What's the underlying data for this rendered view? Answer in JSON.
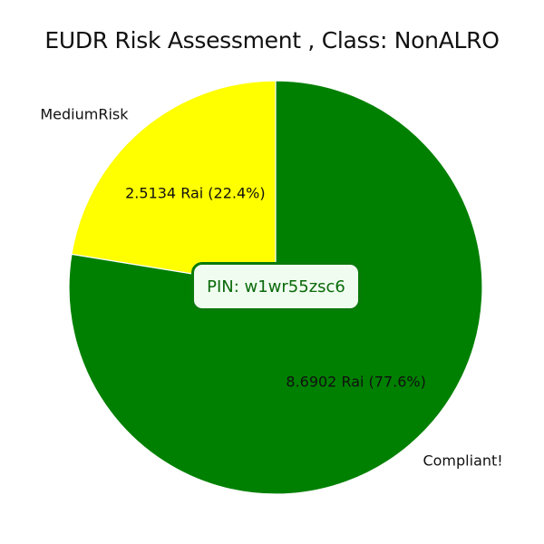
{
  "chart_data": {
    "type": "pie",
    "title": "EUDR Risk Assessment , Class: NonALRO",
    "slices": [
      {
        "label": "MediumRisk",
        "value": 2.5134,
        "percent": 22.4,
        "value_label": "2.5134 Rai (22.4%)",
        "color": "#ffff00"
      },
      {
        "label": "Compliant!",
        "value": 8.6902,
        "percent": 77.6,
        "value_label": "8.6902 Rai (77.6%)",
        "color": "#008000"
      }
    ],
    "start_angle_deg": 90,
    "direction": "counterclockwise",
    "edge_color": "#ffffff"
  },
  "annotation": {
    "pin_text": "PIN: w1wr55zsc6",
    "border_color": "#0a7a0a",
    "background_color": "#f0fcf0"
  }
}
